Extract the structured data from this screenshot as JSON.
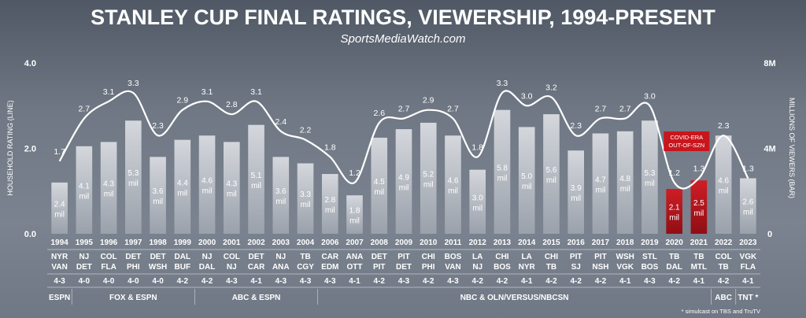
{
  "chart_data": {
    "type": "bar",
    "title": "STANLEY CUP FINAL RATINGS, VIEWERSHIP, 1994-PRESENT",
    "subtitle": "SportsMediaWatch.com",
    "ylabel_left": "HOUSEHOLD RATING (LINE)",
    "ylabel_right": "MILLIONS OF VIEWERS (BAR)",
    "left_ticks": [
      "4.0",
      "2.0",
      "0.0"
    ],
    "right_ticks": [
      "8M",
      "4M",
      "0"
    ],
    "ylim_left": [
      0,
      4
    ],
    "ylim_right": [
      0,
      8
    ],
    "viewer_unit": "mil",
    "categories": [
      "1994",
      "1995",
      "1996",
      "1997",
      "1998",
      "1999",
      "2000",
      "2001",
      "2002",
      "2003",
      "2004",
      "2006",
      "2007",
      "2008",
      "2009",
      "2010",
      "2011",
      "2012",
      "2013",
      "2014",
      "2015",
      "2016",
      "2017",
      "2018",
      "2019",
      "2020",
      "2021",
      "2022",
      "2023"
    ],
    "series": [
      {
        "name": "Household rating",
        "kind": "line",
        "values": [
          1.7,
          2.7,
          3.1,
          3.3,
          2.3,
          2.9,
          3.1,
          2.8,
          3.1,
          2.4,
          2.2,
          1.8,
          1.2,
          2.6,
          2.7,
          2.9,
          2.7,
          1.8,
          3.3,
          3.0,
          3.2,
          2.3,
          2.7,
          2.7,
          3.0,
          1.2,
          1.3,
          2.3,
          1.3
        ],
        "labels": [
          "1.7",
          "2.7",
          "3.1",
          "3.3",
          "2.3",
          "2.9",
          "3.1",
          "2.8",
          "3.1",
          "2.4",
          "2.2",
          "1.8",
          "1.2",
          "2.6",
          "2.7",
          "2.9",
          "2.7",
          "1.8",
          "3.3",
          "3.0",
          "3.2",
          "2.3",
          "2.7",
          "2.7",
          "3.0",
          "1.2",
          "1.3",
          "2.3",
          "1.3"
        ]
      },
      {
        "name": "Viewers",
        "kind": "bar",
        "values": [
          2.4,
          4.1,
          4.3,
          5.3,
          3.6,
          4.4,
          4.6,
          4.3,
          5.1,
          3.6,
          3.3,
          2.8,
          1.8,
          4.5,
          4.9,
          5.2,
          4.6,
          3.0,
          5.8,
          5.0,
          5.6,
          3.9,
          4.7,
          4.8,
          5.3,
          2.1,
          2.5,
          4.6,
          2.6
        ],
        "labels": [
          "2.4",
          "4.1",
          "4.3",
          "5.3",
          "3.6",
          "4.4",
          "4.6",
          "4.3",
          "5.1",
          "3.6",
          "3.3",
          "2.8",
          "1.8",
          "4.5",
          "4.9",
          "5.2",
          "4.6",
          "3.0",
          "5.8",
          "5.0",
          "5.6",
          "3.9",
          "4.7",
          "4.8",
          "5.3",
          "2.1",
          "2.5",
          "4.6",
          "2.6"
        ]
      }
    ],
    "highlight_bars": [
      "2020",
      "2021"
    ],
    "highlight_color": "#c8161d",
    "matchups": [
      [
        "NYR",
        "VAN"
      ],
      [
        "NJ",
        "DET"
      ],
      [
        "COL",
        "FLA"
      ],
      [
        "DET",
        "PHI"
      ],
      [
        "DET",
        "WSH"
      ],
      [
        "DAL",
        "BUF"
      ],
      [
        "NJ",
        "DAL"
      ],
      [
        "COL",
        "NJ"
      ],
      [
        "DET",
        "CAR"
      ],
      [
        "NJ",
        "ANA"
      ],
      [
        "TB",
        "CGY"
      ],
      [
        "CAR",
        "EDM"
      ],
      [
        "ANA",
        "OTT"
      ],
      [
        "DET",
        "PIT"
      ],
      [
        "PIT",
        "DET"
      ],
      [
        "CHI",
        "PHI"
      ],
      [
        "BOS",
        "VAN"
      ],
      [
        "LA",
        "NJ"
      ],
      [
        "CHI",
        "BOS"
      ],
      [
        "LA",
        "NYR"
      ],
      [
        "CHI",
        "TB"
      ],
      [
        "PIT",
        "SJ"
      ],
      [
        "PIT",
        "NSH"
      ],
      [
        "WSH",
        "VGK"
      ],
      [
        "STL",
        "BOS"
      ],
      [
        "TB",
        "DAL"
      ],
      [
        "TB",
        "MTL"
      ],
      [
        "COL",
        "TB"
      ],
      [
        "VGK",
        "FLA"
      ]
    ],
    "series_results": [
      "4-3",
      "4-0",
      "4-0",
      "4-0",
      "4-0",
      "4-2",
      "4-2",
      "4-3",
      "4-1",
      "4-3",
      "4-3",
      "4-3",
      "4-1",
      "4-2",
      "4-3",
      "4-2",
      "4-3",
      "4-2",
      "4-2",
      "4-1",
      "4-2",
      "4-2",
      "4-2",
      "4-1",
      "4-3",
      "4-2",
      "4-1",
      "4-2",
      "4-1"
    ],
    "networks": [
      {
        "label": "ESPN",
        "from": "1994",
        "to": "1994"
      },
      {
        "label": "FOX & ESPN",
        "from": "1995",
        "to": "1999"
      },
      {
        "label": "ABC & ESPN",
        "from": "2000",
        "to": "2004"
      },
      {
        "label": "NBC & OLN/VERSUS/NBCSN",
        "from": "2006",
        "to": "2021"
      },
      {
        "label": "ABC",
        "from": "2022",
        "to": "2022"
      },
      {
        "label": "TNT *",
        "from": "2023",
        "to": "2023"
      }
    ],
    "annotation": {
      "lines": [
        "COVID-ERA",
        "OUT-OF-SZN"
      ],
      "color": "#c8161d"
    },
    "footnote": "* simulcast on TBS and TruTV"
  }
}
